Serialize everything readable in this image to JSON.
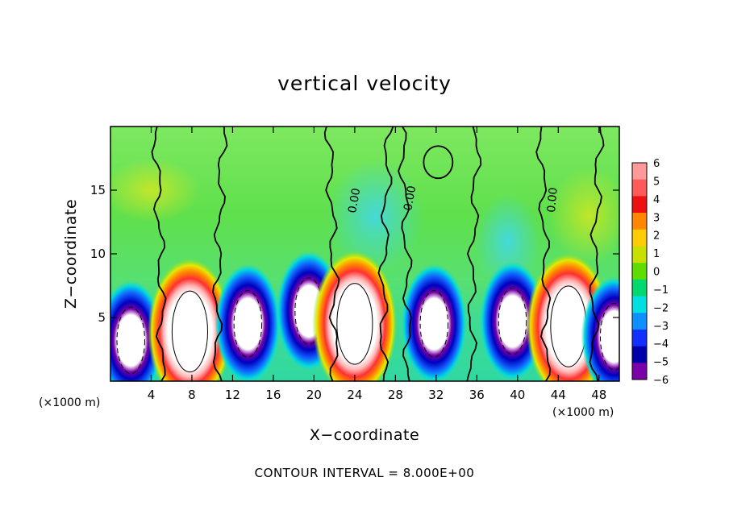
{
  "chart_data": {
    "type": "heatmap",
    "title": "vertical velocity",
    "xlabel": "X−coordinate",
    "ylabel": "Z−coordinate",
    "x_units": "(×1000 m)",
    "y_units": "(×1000 m)",
    "xlim": [
      0,
      50
    ],
    "ylim": [
      0,
      20
    ],
    "x_ticks": [
      "4",
      "8",
      "12",
      "16",
      "20",
      "24",
      "28",
      "32",
      "36",
      "40",
      "44",
      "48"
    ],
    "x_tick_values": [
      4,
      8,
      12,
      16,
      20,
      24,
      28,
      32,
      36,
      40,
      44,
      48
    ],
    "y_ticks": [
      "5",
      "10",
      "15"
    ],
    "y_tick_values": [
      5,
      10,
      15
    ],
    "colorbar": {
      "labels": [
        "6",
        "5",
        "4",
        "3",
        "2",
        "1",
        "0",
        "−1",
        "−2",
        "−3",
        "−4",
        "−5",
        "−6"
      ],
      "values": [
        6,
        5,
        4,
        3,
        2,
        1,
        0,
        -1,
        -2,
        -3,
        -4,
        -5,
        -6
      ],
      "colors": [
        "#ff9a9a",
        "#ff5a5a",
        "#ee1010",
        "#ff8800",
        "#ffcc00",
        "#c8e000",
        "#60dd00",
        "#00d870",
        "#00e0e0",
        "#1090ff",
        "#1030ff",
        "#0000aa",
        "#7a00a8"
      ]
    },
    "contour_levels": [
      "0.00"
    ],
    "updraft_cores": [
      {
        "x": 2.0,
        "z": 3.2,
        "sign": "down"
      },
      {
        "x": 7.8,
        "z": 3.9,
        "sign": "up"
      },
      {
        "x": 13.5,
        "z": 4.5,
        "sign": "down"
      },
      {
        "x": 19.5,
        "z": 5.5,
        "sign": "down"
      },
      {
        "x": 24.0,
        "z": 4.5,
        "sign": "up"
      },
      {
        "x": 31.8,
        "z": 4.5,
        "sign": "down"
      },
      {
        "x": 39.5,
        "z": 4.7,
        "sign": "down"
      },
      {
        "x": 45.0,
        "z": 4.3,
        "sign": "up"
      },
      {
        "x": 49.5,
        "z": 3.5,
        "sign": "down"
      }
    ],
    "annotation": "CONTOUR INTERVAL = 8.000E+00"
  }
}
